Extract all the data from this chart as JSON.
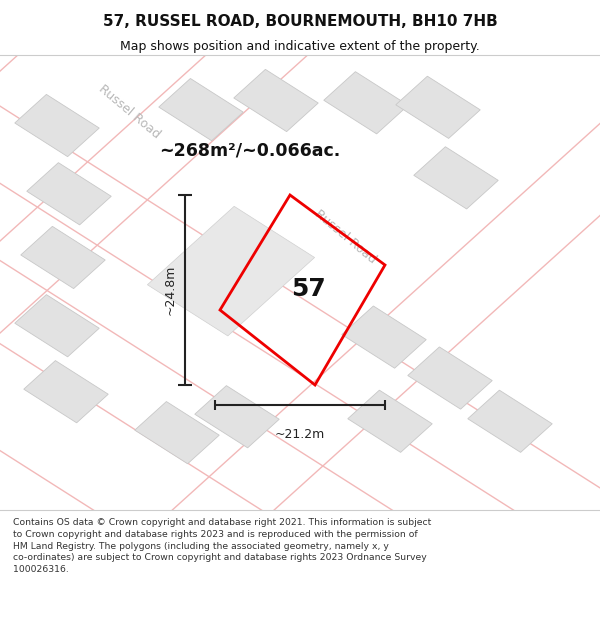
{
  "title_line1": "57, RUSSEL ROAD, BOURNEMOUTH, BH10 7HB",
  "title_line2": "Map shows position and indicative extent of the property.",
  "area_text": "~268m²/~0.066ac.",
  "number_text": "57",
  "dim_width": "~21.2m",
  "dim_height": "~24.8m",
  "road_label1": "Russel Road",
  "road_label2": "Russel Road",
  "footer_text": "Contains OS data © Crown copyright and database right 2021. This information is subject to Crown copyright and database rights 2023 and is reproduced with the permission of HM Land Registry. The polygons (including the associated geometry, namely x, y co-ordinates) are subject to Crown copyright and database rights 2023 Ordnance Survey 100026316.",
  "bg_color": "#f8f8f8",
  "map_bg": "#ffffff",
  "road_line_color": "#f2b8b8",
  "building_fill": "#e2e2e2",
  "building_edge": "#c8c8c8",
  "highlight_fill": "#e8e8e8",
  "highlight_edge": "#d0d0d0",
  "property_edge": "#ee0000",
  "dim_color": "#222222",
  "road_text_color": "#b8b8b8",
  "title_color": "#111111",
  "footer_color": "#333333"
}
